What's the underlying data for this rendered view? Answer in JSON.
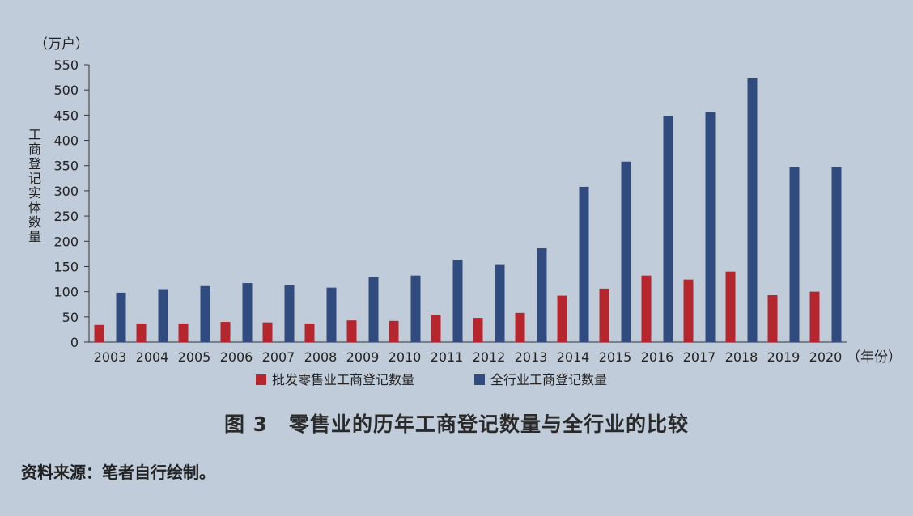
{
  "chart_data": {
    "type": "bar",
    "unit": "（万户）",
    "ylabel": "工商登记实体数量",
    "xunit": "（年份）",
    "ylim": [
      0,
      550
    ],
    "yticks": [
      0,
      50,
      100,
      150,
      200,
      250,
      300,
      350,
      400,
      450,
      500,
      550
    ],
    "categories": [
      "2003",
      "2004",
      "2005",
      "2006",
      "2007",
      "2008",
      "2009",
      "2010",
      "2011",
      "2012",
      "2013",
      "2014",
      "2015",
      "2016",
      "2017",
      "2018",
      "2019",
      "2020"
    ],
    "series": [
      {
        "name": "批发零售业工商登记数量",
        "color": "#b5262e",
        "values": [
          34,
          37,
          37,
          40,
          39,
          37,
          43,
          42,
          53,
          48,
          58,
          92,
          106,
          132,
          124,
          140,
          93,
          100
        ]
      },
      {
        "name": "全行业工商登记数量",
        "color": "#324b7e",
        "values": [
          98,
          105,
          111,
          117,
          113,
          108,
          129,
          132,
          163,
          153,
          186,
          308,
          358,
          449,
          456,
          523,
          347,
          347
        ]
      }
    ],
    "legend": "bottom"
  },
  "caption": "图 3　零售业的历年工商登记数量与全行业的比较",
  "source": "资料来源：笔者自行绘制。"
}
